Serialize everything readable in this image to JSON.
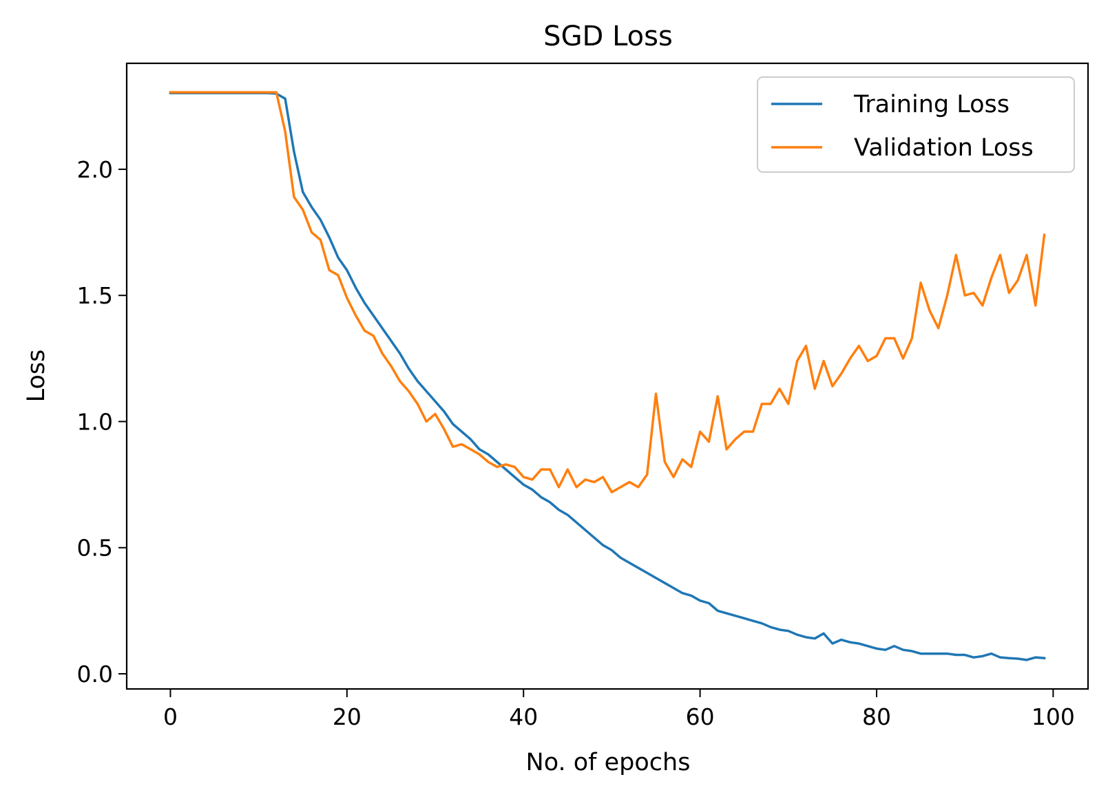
{
  "chart_data": {
    "type": "line",
    "title": "SGD Loss",
    "xlabel": "No. of epochs",
    "ylabel": "Loss",
    "xlim": [
      -4.95,
      103.95
    ],
    "ylim": [
      -0.06,
      2.42
    ],
    "xticks": [
      0,
      20,
      40,
      60,
      80,
      100
    ],
    "xtick_labels": [
      "0",
      "20",
      "40",
      "60",
      "80",
      "100"
    ],
    "yticks": [
      0.0,
      0.5,
      1.0,
      1.5,
      2.0
    ],
    "ytick_labels": [
      "0.0",
      "0.5",
      "1.0",
      "1.5",
      "2.0"
    ],
    "grid": false,
    "legend_position": "top-right",
    "x": [
      0,
      1,
      2,
      3,
      4,
      5,
      6,
      7,
      8,
      9,
      10,
      11,
      12,
      13,
      14,
      15,
      16,
      17,
      18,
      19,
      20,
      21,
      22,
      23,
      24,
      25,
      26,
      27,
      28,
      29,
      30,
      31,
      32,
      33,
      34,
      35,
      36,
      37,
      38,
      39,
      40,
      41,
      42,
      43,
      44,
      45,
      46,
      47,
      48,
      49,
      50,
      51,
      52,
      53,
      54,
      55,
      56,
      57,
      58,
      59,
      60,
      61,
      62,
      63,
      64,
      65,
      66,
      67,
      68,
      69,
      70,
      71,
      72,
      73,
      74,
      75,
      76,
      77,
      78,
      79,
      80,
      81,
      82,
      83,
      84,
      85,
      86,
      87,
      88,
      89,
      90,
      91,
      92,
      93,
      94,
      95,
      96,
      97,
      98,
      99
    ],
    "series": [
      {
        "name": "Training Loss",
        "color": "#1f77b4",
        "values": [
          2.302,
          2.302,
          2.302,
          2.302,
          2.302,
          2.302,
          2.302,
          2.302,
          2.302,
          2.302,
          2.302,
          2.302,
          2.3,
          2.28,
          2.07,
          1.91,
          1.85,
          1.8,
          1.73,
          1.65,
          1.6,
          1.53,
          1.47,
          1.42,
          1.37,
          1.32,
          1.27,
          1.21,
          1.16,
          1.12,
          1.08,
          1.04,
          0.99,
          0.96,
          0.93,
          0.89,
          0.87,
          0.84,
          0.81,
          0.78,
          0.75,
          0.73,
          0.7,
          0.68,
          0.65,
          0.63,
          0.6,
          0.57,
          0.54,
          0.51,
          0.49,
          0.46,
          0.44,
          0.42,
          0.4,
          0.38,
          0.36,
          0.34,
          0.32,
          0.31,
          0.29,
          0.28,
          0.25,
          0.24,
          0.23,
          0.22,
          0.21,
          0.2,
          0.185,
          0.175,
          0.17,
          0.155,
          0.145,
          0.14,
          0.16,
          0.12,
          0.135,
          0.125,
          0.12,
          0.11,
          0.1,
          0.095,
          0.11,
          0.095,
          0.09,
          0.08,
          0.08,
          0.08,
          0.08,
          0.075,
          0.075,
          0.065,
          0.07,
          0.08,
          0.065,
          0.062,
          0.06,
          0.055,
          0.065,
          0.062
        ]
      },
      {
        "name": "Validation Loss",
        "color": "#ff7f0e",
        "values": [
          2.305,
          2.305,
          2.305,
          2.305,
          2.305,
          2.305,
          2.305,
          2.305,
          2.305,
          2.305,
          2.305,
          2.305,
          2.305,
          2.15,
          1.89,
          1.84,
          1.75,
          1.72,
          1.6,
          1.58,
          1.49,
          1.42,
          1.36,
          1.34,
          1.27,
          1.22,
          1.16,
          1.12,
          1.07,
          1.0,
          1.03,
          0.97,
          0.9,
          0.91,
          0.89,
          0.87,
          0.84,
          0.82,
          0.83,
          0.82,
          0.78,
          0.77,
          0.81,
          0.81,
          0.74,
          0.81,
          0.74,
          0.77,
          0.76,
          0.78,
          0.72,
          0.74,
          0.76,
          0.74,
          0.79,
          1.11,
          0.84,
          0.78,
          0.85,
          0.82,
          0.96,
          0.92,
          1.1,
          0.89,
          0.93,
          0.96,
          0.96,
          1.07,
          1.07,
          1.13,
          1.07,
          1.24,
          1.3,
          1.13,
          1.24,
          1.14,
          1.19,
          1.25,
          1.3,
          1.24,
          1.26,
          1.33,
          1.33,
          1.25,
          1.33,
          1.55,
          1.44,
          1.37,
          1.5,
          1.66,
          1.5,
          1.51,
          1.46,
          1.57,
          1.66,
          1.51,
          1.56,
          1.66,
          1.46,
          1.74
        ]
      }
    ]
  }
}
